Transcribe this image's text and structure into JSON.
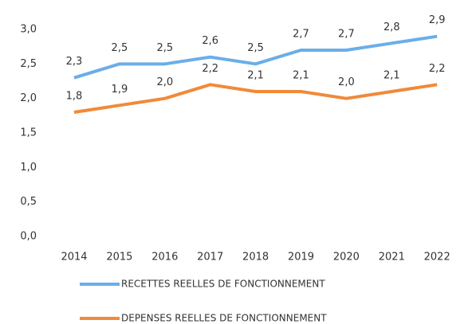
{
  "chart_data": {
    "type": "line",
    "categories": [
      "2014",
      "2015",
      "2016",
      "2017",
      "2018",
      "2019",
      "2020",
      "2021",
      "2022"
    ],
    "series": [
      {
        "name": "RECETTES REELLES DE FONCTIONNEMENT",
        "color": "#6aaee8",
        "values": [
          2.3,
          2.5,
          2.5,
          2.6,
          2.5,
          2.7,
          2.7,
          2.8,
          2.9
        ],
        "value_labels": [
          "2,3",
          "2,5",
          "2,5",
          "2,6",
          "2,5",
          "2,7",
          "2,7",
          "2,8",
          "2,9"
        ]
      },
      {
        "name": "DEPENSES REELLES DE FONCTIONNEMENT",
        "color": "#f08a3a",
        "values": [
          1.8,
          1.9,
          2.0,
          2.2,
          2.1,
          2.1,
          2.0,
          2.1,
          2.2
        ],
        "value_labels": [
          "1,8",
          "1,9",
          "2,0",
          "2,2",
          "2,1",
          "2,1",
          "2,0",
          "2,1",
          "2,2"
        ]
      }
    ],
    "ylim": [
      0,
      3
    ],
    "yticks": [
      {
        "value": 0,
        "label": "0,0"
      },
      {
        "value": 0.5,
        "label": "0,5"
      },
      {
        "value": 1,
        "label": "1,0"
      },
      {
        "value": 1.5,
        "label": "1,5"
      },
      {
        "value": 2,
        "label": "2,0"
      },
      {
        "value": 2.5,
        "label": "2,5"
      },
      {
        "value": 3,
        "label": "3,0"
      }
    ]
  }
}
